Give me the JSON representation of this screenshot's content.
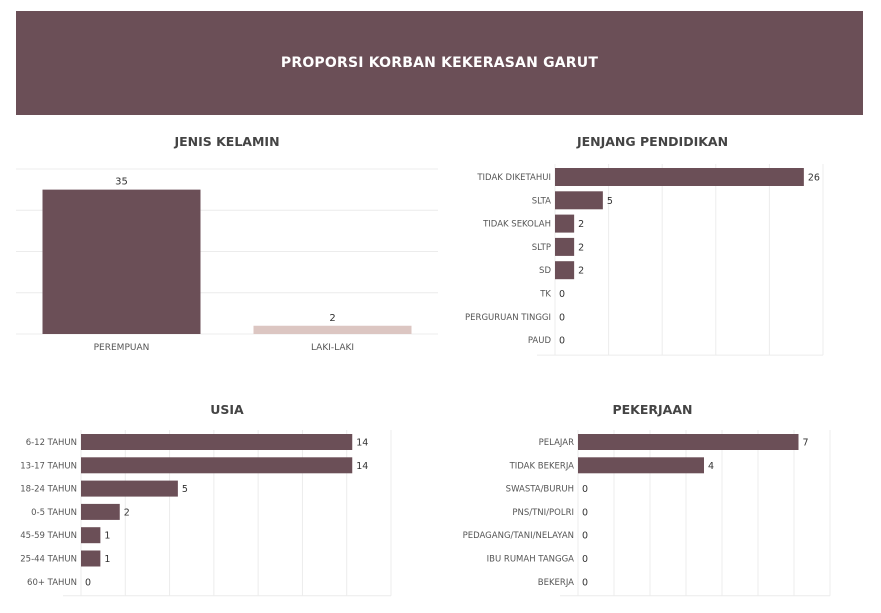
{
  "banner": {
    "title": "PROPORSI KORBAN KEKERASAN GARUT"
  },
  "colors": {
    "banner": "#6b4f57",
    "bar": "#6b4f57",
    "bar_light": "#dcc6c2",
    "grid": "#ececec",
    "text": "#444444"
  },
  "chart_data": [
    {
      "id": "gender",
      "type": "bar",
      "title": "JENIS KELAMIN",
      "categories": [
        "PEREMPUAN",
        "LAKI-LAKI"
      ],
      "values": [
        35,
        2
      ],
      "bar_colors": [
        "#6b4f57",
        "#dcc6c2"
      ],
      "ylim": [
        0,
        40
      ],
      "grid": true
    },
    {
      "id": "education",
      "type": "bar",
      "orientation": "horizontal",
      "title": "JENJANG PENDIDIKAN",
      "categories": [
        "TIDAK DIKETAHUI",
        "SLTA",
        "TIDAK SEKOLAH",
        "SLTP",
        "SD",
        "TK",
        "PERGURUAN TINGGI",
        "PAUD"
      ],
      "values": [
        26,
        5,
        2,
        2,
        2,
        0,
        0,
        0
      ],
      "xlim": [
        0,
        28
      ],
      "grid": true
    },
    {
      "id": "age",
      "type": "bar",
      "orientation": "horizontal",
      "title": "USIA",
      "categories": [
        "6-12 TAHUN",
        "13-17 TAHUN",
        "18-24 TAHUN",
        "0-5 TAHUN",
        "45-59 TAHUN",
        "25-44 TAHUN",
        "60+ TAHUN"
      ],
      "values": [
        14,
        14,
        5,
        2,
        1,
        1,
        0
      ],
      "xlim": [
        0,
        16
      ],
      "grid": true
    },
    {
      "id": "occupation",
      "type": "bar",
      "orientation": "horizontal",
      "title": "PEKERJAAN",
      "categories": [
        "PELAJAR",
        "TIDAK BEKERJA",
        "SWASTA/BURUH",
        "PNS/TNI/POLRI",
        "PEDAGANG/TANI/NELAYAN",
        "IBU RUMAH TANGGA",
        "BEKERJA"
      ],
      "values": [
        7,
        4,
        0,
        0,
        0,
        0,
        0
      ],
      "xlim": [
        0,
        8
      ],
      "grid": true
    }
  ]
}
